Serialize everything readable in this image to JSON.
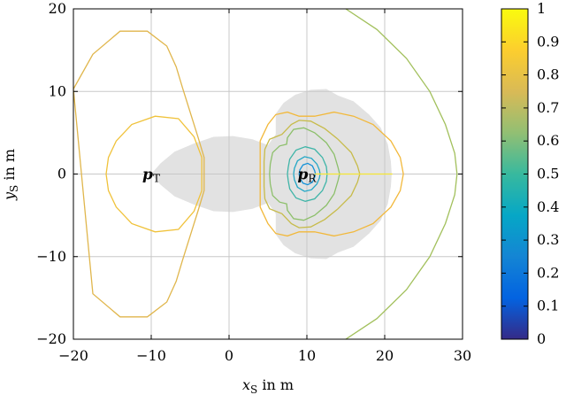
{
  "chart_data": {
    "type": "contour",
    "title": "",
    "xlabel": {
      "symbol": "x",
      "sub": "S",
      "unit": " in m"
    },
    "ylabel": {
      "symbol": "y",
      "sub": "S",
      "unit": " in m"
    },
    "xlim": [
      -20,
      30
    ],
    "ylim": [
      -20,
      20
    ],
    "xticks": [
      "−20",
      "−10",
      "0",
      "10",
      "20",
      "30"
    ],
    "yticks": [
      "−20",
      "−10",
      "0",
      "10",
      "20"
    ],
    "xtick_values": [
      -20,
      -10,
      0,
      10,
      20,
      30
    ],
    "ytick_values": [
      -20,
      -10,
      0,
      10,
      20
    ],
    "grid": true,
    "colorbar": {
      "min": 0,
      "max": 1,
      "ticks": [
        "0",
        "0.1",
        "0.2",
        "0.3",
        "0.4",
        "0.5",
        "0.6",
        "0.7",
        "0.8",
        "0.9",
        "1"
      ],
      "tick_values": [
        0,
        0.1,
        0.2,
        0.3,
        0.4,
        0.5,
        0.6,
        0.7,
        0.8,
        0.9,
        1
      ],
      "stops": [
        "#352a87",
        "#0363e1",
        "#1485d4",
        "#06a7c6",
        "#38b99e",
        "#92bf73",
        "#d9ba56",
        "#fcce2e",
        "#f9fb0e"
      ]
    },
    "markers": [
      {
        "label_main": "p",
        "label_sub": "T",
        "x": -10,
        "y": 0
      },
      {
        "label_main": "p",
        "label_sub": "R",
        "x": 10,
        "y": 0
      }
    ],
    "shaded_region_color": "#e2e2e2"
  }
}
